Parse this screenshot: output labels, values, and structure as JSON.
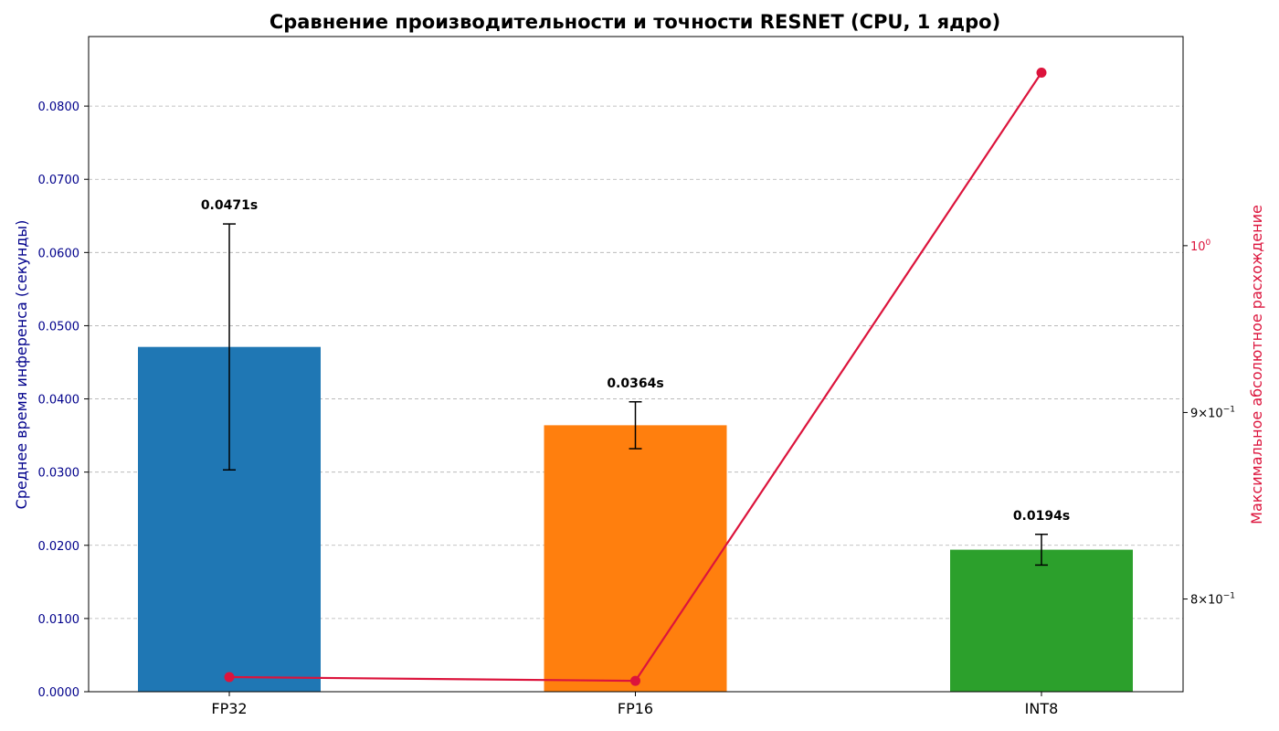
{
  "chart_data": {
    "type": "bar",
    "title": "Сравнение производительности и точности RESNET (CPU, 1 ядро)",
    "categories": [
      "FP32",
      "FP16",
      "INT8"
    ],
    "ylabel": "Среднее время инференса (секунды)",
    "ylim": [
      0,
      0.0895
    ],
    "yticks": [
      0.0,
      0.01,
      0.02,
      0.03,
      0.04,
      0.05,
      0.06,
      0.07,
      0.08
    ],
    "ytick_labels": [
      "0.0000",
      "0.0100",
      "0.0200",
      "0.0300",
      "0.0400",
      "0.0500",
      "0.0600",
      "0.0700",
      "0.0800"
    ],
    "grid": true,
    "bars": {
      "values": [
        0.0471,
        0.0364,
        0.0194
      ],
      "errors": [
        0.0168,
        0.0032,
        0.0021
      ],
      "labels": [
        "0.0471s",
        "0.0364s",
        "0.0194s"
      ],
      "colors": [
        "#1f77b4",
        "#ff7f0e",
        "#2ca02c"
      ]
    },
    "secondary_axis": {
      "label": "Максимальное абсолютное расхождение",
      "scale": "log",
      "ylim": [
        0.7545,
        1.1412
      ],
      "ticks": [
        {
          "value": 1.0,
          "base": "10",
          "exp": "0",
          "color": "#dc143c"
        },
        {
          "value": 0.9,
          "mantissa": "9",
          "base": "10",
          "exp": "−1",
          "color": "#000000"
        },
        {
          "value": 0.8,
          "mantissa": "8",
          "base": "10",
          "exp": "−1",
          "color": "#000000"
        }
      ]
    },
    "line": {
      "values": [
        0.7615,
        0.7597,
        1.1155
      ],
      "color": "#dc143c"
    }
  }
}
